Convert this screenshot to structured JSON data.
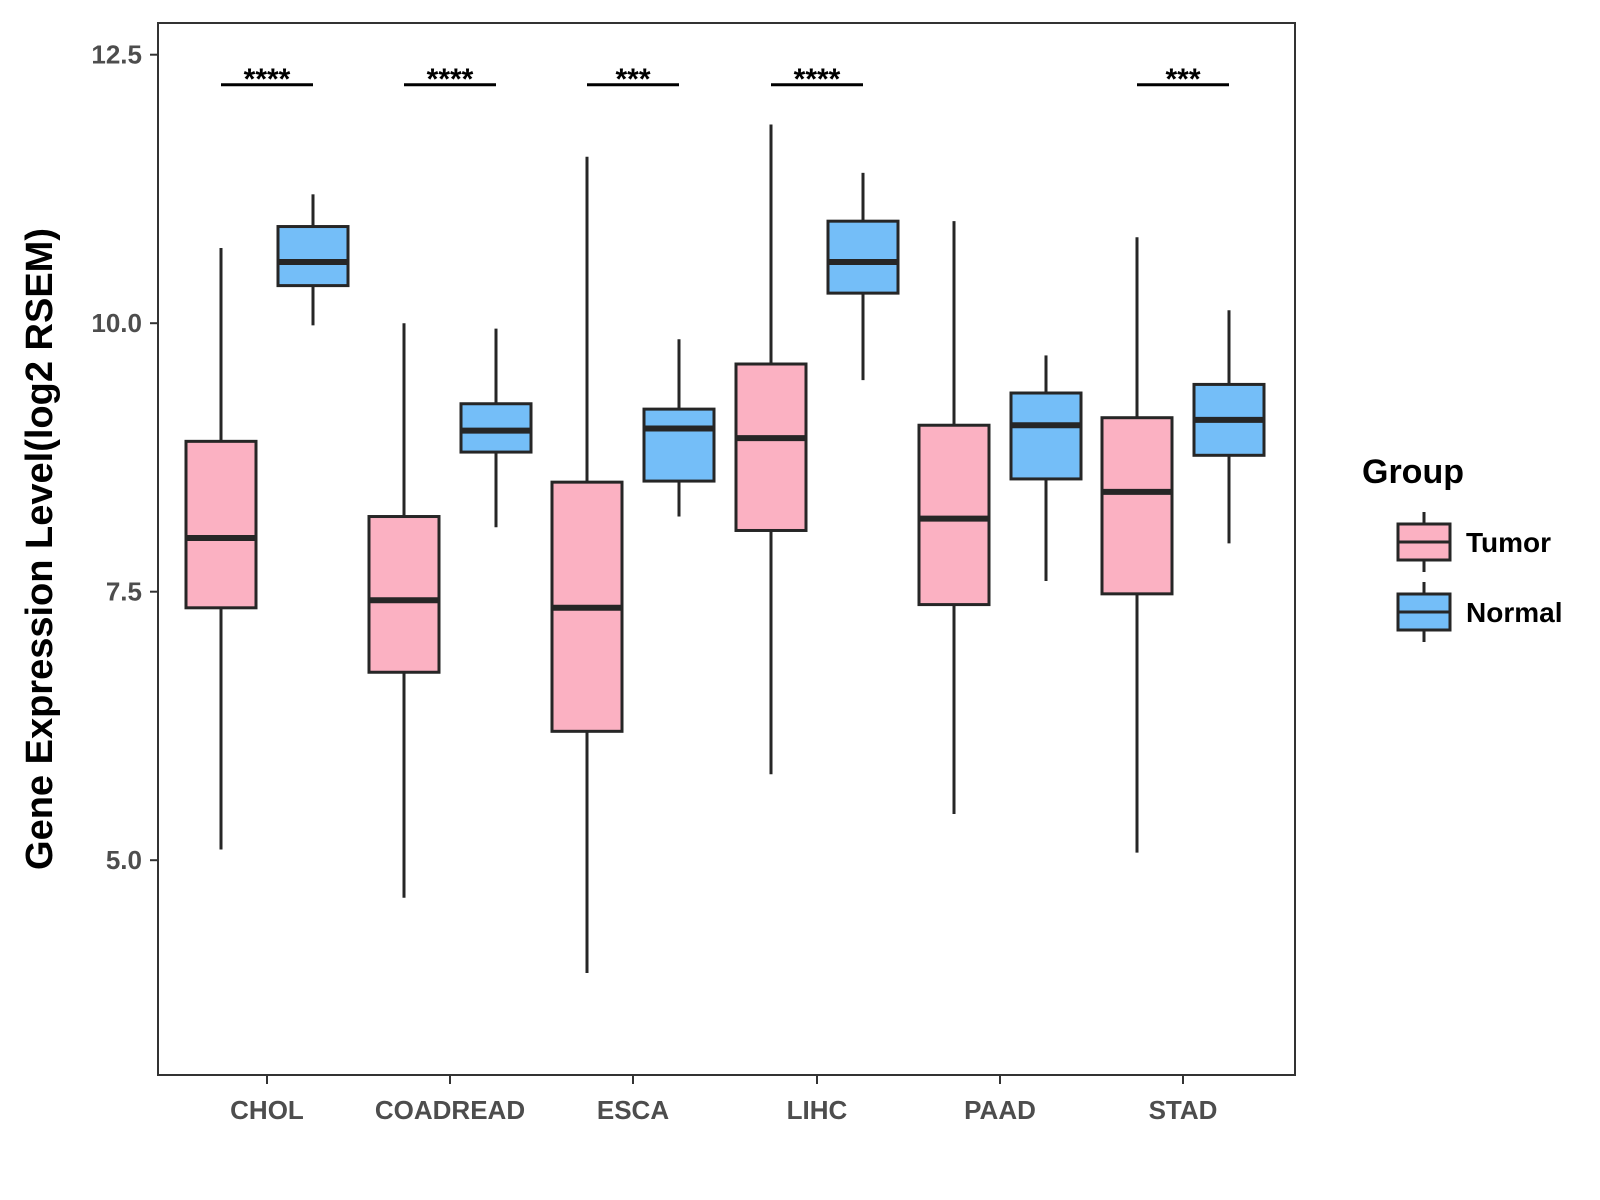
{
  "chart_data": {
    "type": "boxplot",
    "title": "",
    "xlabel": "",
    "ylabel": "Gene Expression Level(log2 RSEM)",
    "ylim": [
      3.0,
      12.8
    ],
    "yticks": [
      5.0,
      7.5,
      10.0,
      12.5
    ],
    "ytick_labels": [
      "5.0",
      "7.5",
      "10.0",
      "12.5"
    ],
    "categories": [
      "CHOL",
      "COADREAD",
      "ESCA",
      "LIHC",
      "PAAD",
      "STAD"
    ],
    "series": [
      {
        "name": "Tumor",
        "color": "#FBB1C2",
        "boxes": [
          {
            "whisker_low": 5.1,
            "q1": 7.35,
            "median": 8.0,
            "q3": 8.9,
            "whisker_high": 10.7
          },
          {
            "whisker_low": 4.65,
            "q1": 6.75,
            "median": 7.42,
            "q3": 8.2,
            "whisker_high": 10.0
          },
          {
            "whisker_low": 3.95,
            "q1": 6.2,
            "median": 7.35,
            "q3": 8.52,
            "whisker_high": 11.55
          },
          {
            "whisker_low": 5.8,
            "q1": 8.07,
            "median": 8.93,
            "q3": 9.62,
            "whisker_high": 11.85
          },
          {
            "whisker_low": 5.43,
            "q1": 7.38,
            "median": 8.18,
            "q3": 9.05,
            "whisker_high": 10.95
          },
          {
            "whisker_low": 5.07,
            "q1": 7.48,
            "median": 8.43,
            "q3": 9.12,
            "whisker_high": 10.8
          }
        ]
      },
      {
        "name": "Normal",
        "color": "#74BEF8",
        "boxes": [
          {
            "whisker_low": 9.98,
            "q1": 10.35,
            "median": 10.57,
            "q3": 10.9,
            "whisker_high": 11.2
          },
          {
            "whisker_low": 8.1,
            "q1": 8.8,
            "median": 9.0,
            "q3": 9.25,
            "whisker_high": 9.95
          },
          {
            "whisker_low": 8.2,
            "q1": 8.53,
            "median": 9.02,
            "q3": 9.2,
            "whisker_high": 9.85
          },
          {
            "whisker_low": 9.47,
            "q1": 10.28,
            "median": 10.57,
            "q3": 10.95,
            "whisker_high": 11.4
          },
          {
            "whisker_low": 7.6,
            "q1": 8.55,
            "median": 9.05,
            "q3": 9.35,
            "whisker_high": 9.7
          },
          {
            "whisker_low": 7.95,
            "q1": 8.77,
            "median": 9.1,
            "q3": 9.43,
            "whisker_high": 10.12
          }
        ]
      }
    ],
    "significance": [
      {
        "category": "CHOL",
        "label": "****",
        "y": 12.22
      },
      {
        "category": "COADREAD",
        "label": "****",
        "y": 12.22
      },
      {
        "category": "ESCA",
        "label": "***",
        "y": 12.22
      },
      {
        "category": "LIHC",
        "label": "****",
        "y": 12.22
      },
      {
        "category": "PAAD",
        "label": "",
        "y": 12.22
      },
      {
        "category": "STAD",
        "label": "***",
        "y": 12.22
      }
    ],
    "legend": {
      "title": "Group",
      "position": "right",
      "items": [
        "Tumor",
        "Normal"
      ]
    },
    "grid": false
  }
}
